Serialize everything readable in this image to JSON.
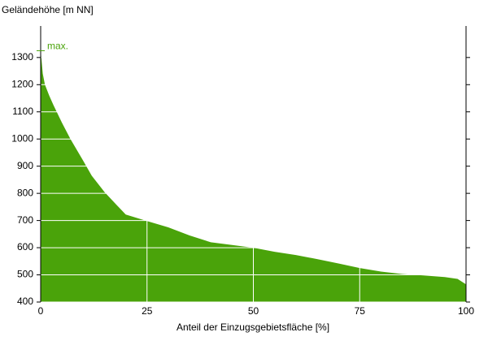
{
  "chart_data": {
    "type": "area",
    "y_label": "Geländehöhe [m NN]",
    "x_label": "Anteil der Einzugsgebietsfläche [%]",
    "annotation": "max.",
    "color": "#4aa30a",
    "x": [
      0,
      0.5,
      1,
      2,
      3,
      5,
      7,
      10,
      12,
      15,
      18,
      20,
      25,
      30,
      35,
      40,
      45,
      50,
      55,
      60,
      65,
      70,
      75,
      80,
      85,
      90,
      95,
      98,
      100
    ],
    "values": [
      1325,
      1240,
      1200,
      1160,
      1125,
      1060,
      1000,
      920,
      865,
      805,
      755,
      722,
      698,
      675,
      645,
      620,
      610,
      600,
      585,
      573,
      558,
      542,
      525,
      512,
      503,
      498,
      492,
      485,
      465
    ],
    "xlim": [
      0,
      100
    ],
    "xticks": [
      0,
      25,
      50,
      75,
      100
    ],
    "ylim": [
      400,
      1416
    ],
    "yticks": [
      400,
      500,
      600,
      700,
      800,
      900,
      1000,
      1100,
      1200,
      1300
    ],
    "grid": true
  }
}
